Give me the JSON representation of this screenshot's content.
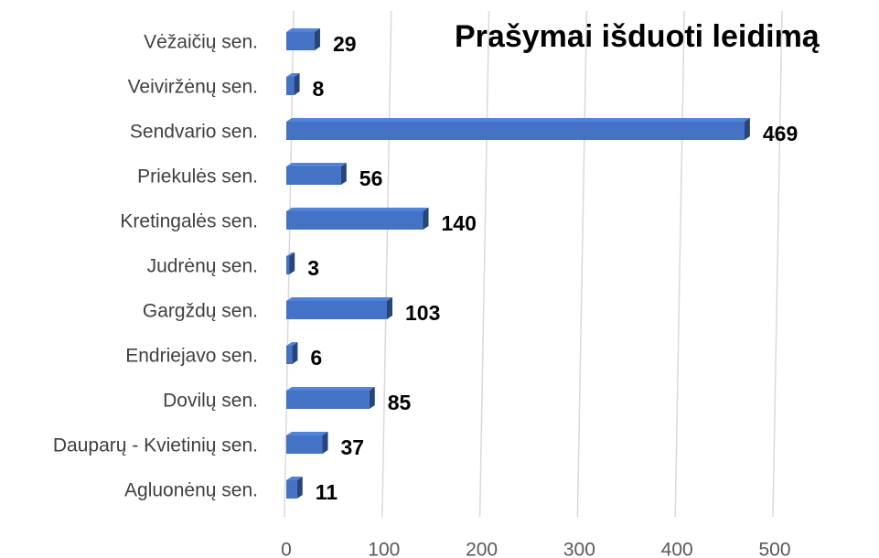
{
  "chart_data": {
    "type": "bar",
    "orientation": "horizontal",
    "title": "Prašymai išduoti leidimą",
    "categories": [
      "Vėžaičių sen.",
      "Veiviržėnų sen.",
      "Sendvario sen.",
      "Priekulės sen.",
      "Kretingalės sen.",
      "Judrėnų sen.",
      "Gargždų sen.",
      "Endriejavo sen.",
      "Dovilų sen.",
      "Dauparų - Kvietinių sen.",
      "Agluonėnų sen."
    ],
    "values": [
      29,
      8,
      469,
      56,
      140,
      3,
      103,
      6,
      85,
      37,
      11
    ],
    "color": "#4472c4",
    "xlim": [
      0,
      500
    ],
    "xticks": [
      0,
      100,
      200,
      300,
      400,
      500
    ],
    "grid": true
  }
}
